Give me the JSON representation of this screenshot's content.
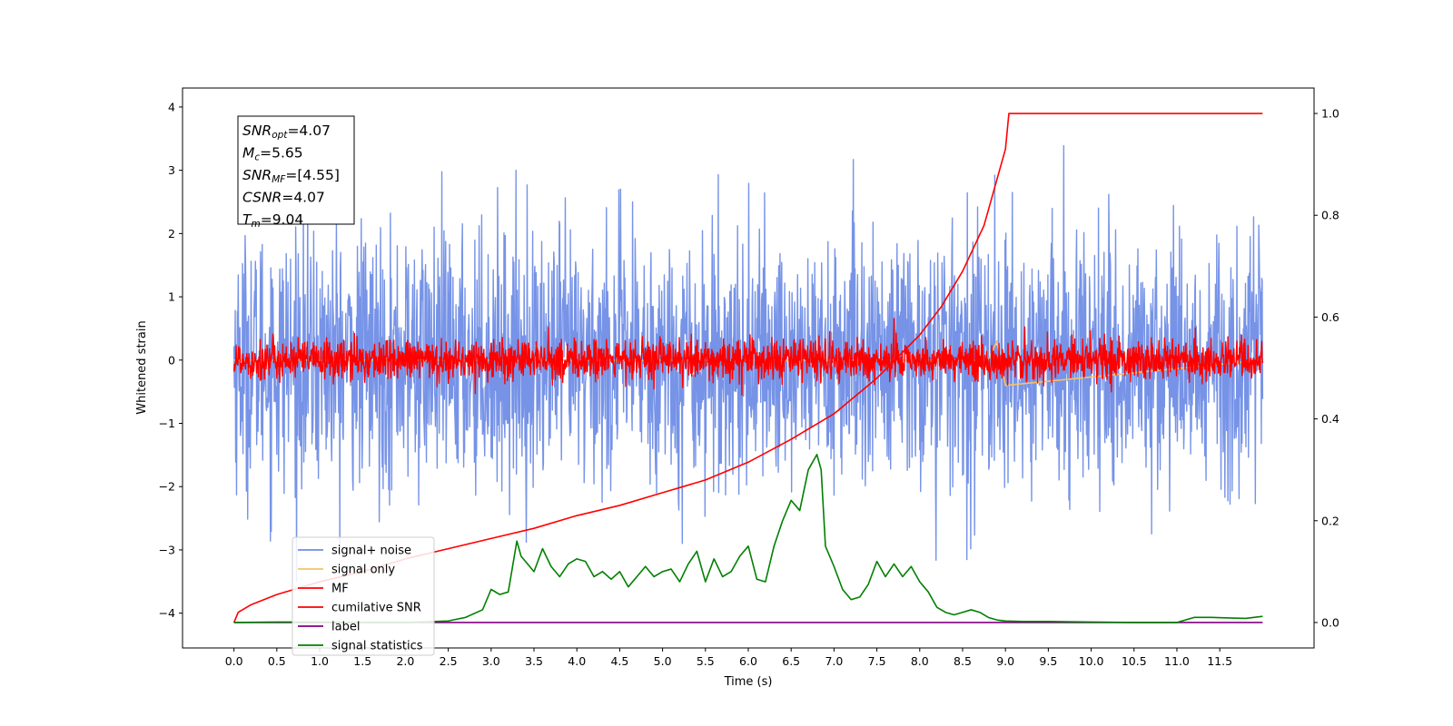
{
  "chart_data": {
    "type": "line",
    "xlabel": "Time (s)",
    "ylabel": "Whitened strain",
    "xlim": [
      -0.6,
      12.6
    ],
    "ylim": [
      -4.55,
      4.3
    ],
    "y2lim": [
      -0.05,
      1.05
    ],
    "x_ticks": [
      0.0,
      0.5,
      1.0,
      1.5,
      2.0,
      2.5,
      3.0,
      3.5,
      4.0,
      4.5,
      5.0,
      5.5,
      6.0,
      6.5,
      7.0,
      7.5,
      8.0,
      8.5,
      9.0,
      9.5,
      10.0,
      10.5,
      11.0,
      11.5
    ],
    "x_tick_labels": [
      "0.0",
      "0.5",
      "1.0",
      "1.5",
      "2.0",
      "2.5",
      "3.0",
      "3.5",
      "4.0",
      "4.5",
      "5.0",
      "5.5",
      "6.0",
      "6.5",
      "7.0",
      "7.5",
      "8.0",
      "8.5",
      "9.0",
      "9.5",
      "10.0",
      "10.5",
      "11.0",
      "11.5"
    ],
    "y_ticks": [
      -4,
      -3,
      -2,
      -1,
      0,
      1,
      2,
      3,
      4
    ],
    "y_tick_labels": [
      "−4",
      "−3",
      "−2",
      "−1",
      "0",
      "1",
      "2",
      "3",
      "4"
    ],
    "y2_ticks": [
      0.0,
      0.2,
      0.4,
      0.6,
      0.8,
      1.0
    ],
    "y2_tick_labels": [
      "0.0",
      "0.2",
      "0.4",
      "0.6",
      "0.8",
      "1.0"
    ],
    "grid": false,
    "legend_position": "lower-left",
    "colors": {
      "signal_noise": "#6f8de6",
      "signal_only": "#f5c26b",
      "mf": "#ff0000",
      "cumulative_snr": "#ff0000",
      "label": "#800080",
      "signal_statistics": "#008000"
    },
    "annotation": {
      "lines": [
        {
          "main": "SNR",
          "sub": "opt",
          "rest": "=4.07"
        },
        {
          "main": "M",
          "sub": "c",
          "rest": "=5.65"
        },
        {
          "main": "SNR",
          "sub": "MF",
          "rest": "=[4.55]"
        },
        {
          "main": "CSNR",
          "sub": "",
          "rest": "=4.07"
        },
        {
          "main": "T",
          "sub": "m",
          "rest": "=9.04"
        }
      ]
    },
    "series": [
      {
        "name": "signal+ noise",
        "axis": "left",
        "style": "noise",
        "color": "#6f8de6",
        "x_start": 0.0,
        "x_end": 12.0,
        "std": 1.0
      },
      {
        "name": "signal only",
        "axis": "left",
        "style": "line",
        "color": "#f5c26b",
        "x": [
          0.0,
          8.8,
          8.9,
          9.0,
          12.0
        ],
        "values": [
          0.0,
          0.0,
          0.3,
          -0.4,
          0.0
        ]
      },
      {
        "name": "MF",
        "axis": "left",
        "style": "noise",
        "color": "#ff0000",
        "x_start": 0.0,
        "x_end": 12.0,
        "std": 0.16
      },
      {
        "name": "cumilative SNR",
        "axis": "right",
        "style": "line",
        "color": "#ff0000",
        "x": [
          0.0,
          0.05,
          0.2,
          0.5,
          1.0,
          1.5,
          2.0,
          2.5,
          3.0,
          3.5,
          4.0,
          4.5,
          5.0,
          5.5,
          6.0,
          6.5,
          7.0,
          7.5,
          8.0,
          8.25,
          8.5,
          8.75,
          9.0,
          9.04,
          12.0
        ],
        "values": [
          0.0,
          0.02,
          0.035,
          0.055,
          0.08,
          0.1,
          0.125,
          0.145,
          0.165,
          0.185,
          0.21,
          0.23,
          0.255,
          0.28,
          0.315,
          0.36,
          0.41,
          0.48,
          0.565,
          0.62,
          0.69,
          0.78,
          0.93,
          1.0,
          1.0
        ]
      },
      {
        "name": "label",
        "axis": "right",
        "style": "line",
        "color": "#800080",
        "x": [
          0.0,
          12.0
        ],
        "values": [
          0.0,
          0.0
        ]
      },
      {
        "name": "signal statistics",
        "axis": "right",
        "style": "line",
        "color": "#008000",
        "x": [
          0.0,
          0.5,
          1.0,
          1.5,
          2.0,
          2.5,
          2.7,
          2.9,
          3.0,
          3.1,
          3.2,
          3.3,
          3.35,
          3.4,
          3.5,
          3.6,
          3.7,
          3.8,
          3.9,
          4.0,
          4.1,
          4.2,
          4.3,
          4.4,
          4.5,
          4.6,
          4.7,
          4.8,
          4.9,
          5.0,
          5.1,
          5.2,
          5.3,
          5.4,
          5.45,
          5.5,
          5.6,
          5.7,
          5.8,
          5.9,
          6.0,
          6.1,
          6.2,
          6.3,
          6.4,
          6.5,
          6.6,
          6.7,
          6.8,
          6.85,
          6.9,
          7.0,
          7.1,
          7.2,
          7.3,
          7.4,
          7.5,
          7.6,
          7.7,
          7.8,
          7.9,
          8.0,
          8.1,
          8.2,
          8.3,
          8.4,
          8.5,
          8.6,
          8.7,
          8.8,
          8.9,
          9.0,
          9.2,
          9.5,
          10.0,
          10.5,
          11.0,
          11.2,
          11.4,
          11.6,
          11.8,
          12.0
        ],
        "values": [
          0.0,
          0.001,
          0.001,
          0.0,
          0.0,
          0.003,
          0.01,
          0.025,
          0.065,
          0.055,
          0.06,
          0.16,
          0.13,
          0.12,
          0.1,
          0.145,
          0.11,
          0.09,
          0.115,
          0.125,
          0.12,
          0.09,
          0.1,
          0.085,
          0.1,
          0.07,
          0.09,
          0.11,
          0.09,
          0.1,
          0.105,
          0.08,
          0.115,
          0.14,
          0.11,
          0.08,
          0.125,
          0.09,
          0.1,
          0.13,
          0.15,
          0.085,
          0.08,
          0.15,
          0.2,
          0.24,
          0.22,
          0.3,
          0.33,
          0.3,
          0.15,
          0.11,
          0.065,
          0.045,
          0.05,
          0.075,
          0.12,
          0.09,
          0.115,
          0.09,
          0.11,
          0.08,
          0.06,
          0.03,
          0.02,
          0.015,
          0.02,
          0.025,
          0.02,
          0.01,
          0.005,
          0.003,
          0.002,
          0.002,
          0.001,
          0.0,
          0.0,
          0.01,
          0.01,
          0.009,
          0.008,
          0.012
        ]
      }
    ]
  }
}
